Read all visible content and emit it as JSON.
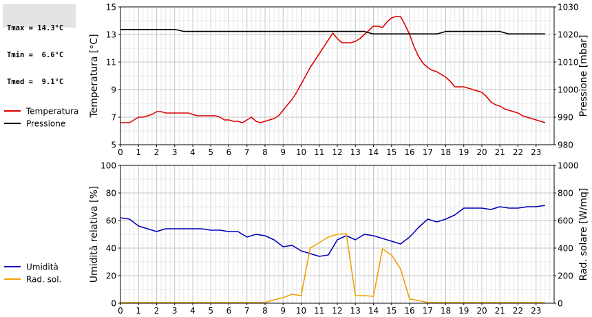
{
  "stats": {
    "tmax": "Tmax = 14.3°C",
    "tmin": "Tmin =  6.6°C",
    "tmed": "Tmed =  9.1°C"
  },
  "chart_data": [
    {
      "type": "line",
      "x_ticks": [
        "0",
        "1",
        "2",
        "3",
        "4",
        "5",
        "6",
        "7",
        "8",
        "9",
        "10",
        "11",
        "12",
        "13",
        "14",
        "15",
        "16",
        "17",
        "18",
        "19",
        "20",
        "21",
        "22",
        "23"
      ],
      "xlim": [
        0,
        24
      ],
      "ylabel": "Temperatura [°C]",
      "ylim": [
        5,
        15
      ],
      "y_ticks": [
        "5",
        "7",
        "9",
        "11",
        "13",
        "15"
      ],
      "y2label": "Pressione [mbar]",
      "y2lim": [
        980,
        1030
      ],
      "y2_ticks": [
        "980",
        "990",
        "1000",
        "1010",
        "1020",
        "1030"
      ],
      "grid": true,
      "legend_position": "left",
      "series": [
        {
          "name": "Temperatura",
          "axis": "left",
          "color": "#dd0000",
          "x": [
            0,
            0.25,
            0.5,
            0.75,
            1,
            1.25,
            1.5,
            1.75,
            2,
            2.25,
            2.5,
            2.75,
            3,
            3.25,
            3.5,
            3.75,
            4,
            4.25,
            4.5,
            4.75,
            5,
            5.25,
            5.5,
            5.75,
            6,
            6.25,
            6.5,
            6.75,
            7,
            7.25,
            7.5,
            7.75,
            8,
            8.25,
            8.5,
            8.75,
            9,
            9.25,
            9.5,
            9.75,
            10,
            10.25,
            10.5,
            10.75,
            11,
            11.25,
            11.5,
            11.75,
            12,
            12.25,
            12.5,
            12.75,
            13,
            13.25,
            13.5,
            13.75,
            14,
            14.25,
            14.5,
            14.75,
            15,
            15.25,
            15.5,
            15.75,
            16,
            16.25,
            16.5,
            16.75,
            17,
            17.25,
            17.5,
            17.75,
            18,
            18.25,
            18.5,
            18.75,
            19,
            19.25,
            19.5,
            19.75,
            20,
            20.25,
            20.5,
            20.75,
            21,
            21.25,
            21.5,
            21.75,
            22,
            22.25,
            22.5,
            22.75,
            23,
            23.25,
            23.5
          ],
          "y": [
            6.6,
            6.6,
            6.6,
            6.8,
            7.0,
            7.0,
            7.1,
            7.2,
            7.4,
            7.4,
            7.3,
            7.3,
            7.3,
            7.3,
            7.3,
            7.3,
            7.2,
            7.1,
            7.1,
            7.1,
            7.1,
            7.1,
            7.0,
            6.8,
            6.8,
            6.7,
            6.7,
            6.6,
            6.8,
            7.0,
            6.7,
            6.6,
            6.7,
            6.8,
            6.9,
            7.1,
            7.5,
            7.9,
            8.3,
            8.8,
            9.4,
            10.0,
            10.6,
            11.1,
            11.6,
            12.1,
            12.6,
            13.1,
            12.7,
            12.4,
            12.4,
            12.4,
            12.5,
            12.7,
            13.0,
            13.3,
            13.6,
            13.6,
            13.5,
            13.9,
            14.2,
            14.3,
            14.3,
            13.7,
            13.0,
            12.1,
            11.4,
            10.9,
            10.6,
            10.4,
            10.3,
            10.1,
            9.9,
            9.6,
            9.2,
            9.2,
            9.2,
            9.1,
            9.0,
            8.9,
            8.8,
            8.5,
            8.1,
            7.9,
            7.8,
            7.6,
            7.5,
            7.4,
            7.3,
            7.1,
            7.0,
            6.9,
            6.8,
            6.7,
            6.6
          ]
        },
        {
          "name": "Pressione",
          "axis": "right",
          "color": "#000000",
          "x": [
            0,
            1,
            2,
            3,
            3.25,
            3.5,
            4,
            5,
            6,
            7,
            8,
            9,
            10,
            11,
            12,
            13,
            13.5,
            13.75,
            14,
            15,
            16,
            17,
            17.5,
            17.75,
            18,
            19,
            20,
            21,
            21.25,
            21.5,
            22,
            23,
            23.5
          ],
          "y": [
            1021.8,
            1021.8,
            1021.8,
            1021.8,
            1021.5,
            1021.1,
            1021.1,
            1021.1,
            1021.1,
            1021.1,
            1021.1,
            1021.1,
            1021.1,
            1021.1,
            1021.1,
            1021.1,
            1021.1,
            1020.6,
            1020.2,
            1020.2,
            1020.2,
            1020.2,
            1020.2,
            1020.6,
            1021.1,
            1021.1,
            1021.1,
            1021.1,
            1020.6,
            1020.2,
            1020.2,
            1020.2,
            1020.2
          ]
        }
      ]
    },
    {
      "type": "line",
      "x_ticks": [
        "0",
        "1",
        "2",
        "3",
        "4",
        "5",
        "6",
        "7",
        "8",
        "9",
        "10",
        "11",
        "12",
        "13",
        "14",
        "15",
        "16",
        "17",
        "18",
        "19",
        "20",
        "21",
        "22",
        "23"
      ],
      "xlim": [
        0,
        24
      ],
      "ylabel": "Umidità relativa [%]",
      "ylim": [
        0,
        100
      ],
      "y_ticks": [
        "0",
        "20",
        "40",
        "60",
        "80",
        "100"
      ],
      "y2label": "Rad. solare [W/mq]",
      "y2lim": [
        0,
        1000
      ],
      "y2_ticks": [
        "0",
        "200",
        "400",
        "600",
        "800",
        "1000"
      ],
      "grid": true,
      "legend_position": "left",
      "series": [
        {
          "name": "Umidità",
          "axis": "left",
          "color": "#0000bb",
          "x": [
            0,
            0.5,
            1,
            1.5,
            2,
            2.5,
            3,
            3.5,
            4,
            4.5,
            5,
            5.5,
            6,
            6.5,
            7,
            7.5,
            8,
            8.5,
            9,
            9.5,
            10,
            10.5,
            11,
            11.5,
            12,
            12.5,
            13,
            13.5,
            14,
            14.5,
            15,
            15.5,
            16,
            16.5,
            17,
            17.5,
            18,
            18.5,
            19,
            19.5,
            20,
            20.5,
            21,
            21.5,
            22,
            22.5,
            23,
            23.5
          ],
          "y": [
            62,
            61,
            56,
            54,
            52,
            54,
            54,
            54,
            54,
            54,
            53,
            53,
            52,
            52,
            48,
            50,
            49,
            46,
            41,
            42,
            38,
            36,
            34,
            35,
            46,
            49,
            46,
            50,
            49,
            47,
            45,
            43,
            48,
            55,
            61,
            59,
            61,
            64,
            69,
            69,
            69,
            68,
            70,
            69,
            69,
            70,
            70,
            71
          ]
        },
        {
          "name": "Rad. sol.",
          "axis": "right",
          "color": "#f0a000",
          "x": [
            0,
            1,
            2,
            3,
            4,
            5,
            6,
            7,
            8,
            8.5,
            9,
            9.5,
            10,
            10.5,
            11,
            11.5,
            12,
            12.5,
            13,
            13.5,
            14,
            14.5,
            15,
            15.5,
            16,
            16.5,
            17,
            18,
            19,
            20,
            21,
            22,
            23,
            23.5
          ],
          "y": [
            5,
            5,
            5,
            5,
            5,
            5,
            5,
            5,
            5,
            25,
            40,
            65,
            55,
            400,
            440,
            480,
            500,
            505,
            55,
            55,
            50,
            395,
            350,
            250,
            30,
            20,
            5,
            5,
            5,
            5,
            5,
            5,
            5,
            5
          ]
        }
      ]
    }
  ]
}
